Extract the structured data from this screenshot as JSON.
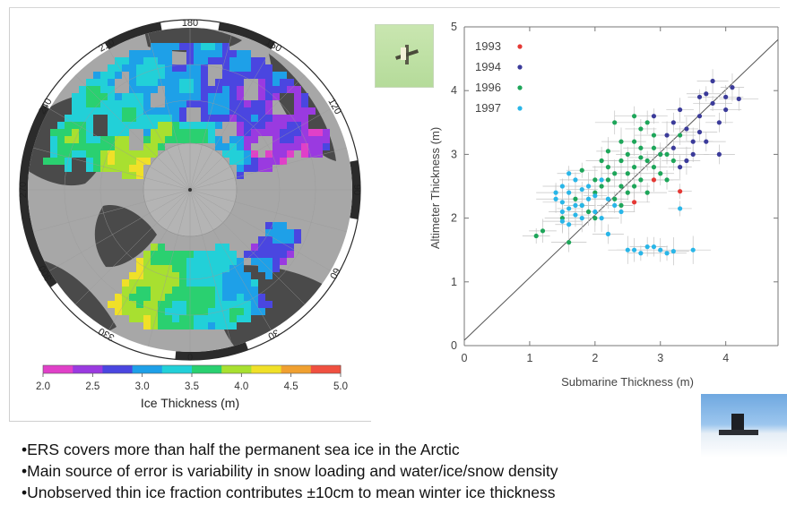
{
  "map_panel": {
    "colorbar_ticks": [
      "2.0",
      "2.5",
      "3.0",
      "3.5",
      "4.0",
      "4.5",
      "5.0"
    ],
    "colorbar_label": "Ice Thickness (m)",
    "colorbar_range": [
      2.0,
      5.0
    ],
    "colorbar_colors": [
      "#e040c8",
      "#9a3ae0",
      "#4a46e0",
      "#1ea0e8",
      "#22d0d8",
      "#2ad070",
      "#a8e030",
      "#f0e028",
      "#f0a030",
      "#f05040"
    ],
    "degree_labels": [
      "180",
      "150",
      "120",
      "90",
      "60",
      "30",
      "0",
      "330",
      "300",
      "270",
      "240",
      "210"
    ]
  },
  "chart_data": {
    "type": "scatter",
    "xlabel": "Submarine Thickness (m)",
    "ylabel": "Altimeter Thickness (m)",
    "xlim": [
      0,
      4.8
    ],
    "ylim": [
      0,
      5
    ],
    "xticks": [
      "0",
      "1",
      "2",
      "3",
      "4"
    ],
    "yticks": [
      "0",
      "1",
      "2",
      "3",
      "4",
      "5"
    ],
    "legend_position": "top-left",
    "reference_line": "y = x",
    "series": [
      {
        "name": "1993",
        "color": "#e53935",
        "x": [
          3.3,
          2.6,
          2.9
        ],
        "y": [
          2.42,
          2.25,
          2.6
        ]
      },
      {
        "name": "1994",
        "color": "#3b3b9a",
        "x": [
          3.2,
          3.4,
          3.6,
          3.8,
          3.9,
          4.0,
          4.1,
          3.5,
          3.7,
          3.3,
          3.1,
          3.6,
          3.9,
          4.2,
          3.4,
          3.0,
          3.2,
          3.8,
          3.5,
          2.9,
          3.6,
          3.3,
          4.0,
          3.7
        ],
        "y": [
          3.1,
          3.4,
          3.6,
          3.8,
          3.5,
          3.9,
          4.05,
          3.0,
          3.2,
          3.7,
          3.3,
          3.9,
          3.0,
          3.87,
          2.9,
          3.0,
          3.5,
          4.15,
          3.2,
          3.6,
          3.35,
          2.8,
          3.7,
          3.95
        ]
      },
      {
        "name": "1996",
        "color": "#1ea65a",
        "x": [
          1.2,
          1.5,
          1.8,
          2.0,
          2.2,
          2.4,
          2.6,
          2.8,
          3.0,
          2.5,
          2.3,
          2.7,
          2.1,
          1.9,
          2.9,
          3.1,
          2.4,
          2.6,
          2.2,
          2.8,
          3.0,
          2.0,
          2.5,
          2.7,
          1.7,
          2.3,
          2.9,
          3.2,
          2.6,
          2.4,
          1.1,
          1.6,
          2.8,
          2.1,
          2.5,
          3.1,
          2.7,
          2.2,
          1.8,
          2.6,
          2.9,
          2.0,
          2.4,
          3.3,
          2.3,
          2.7
        ],
        "y": [
          1.8,
          2.0,
          2.2,
          2.4,
          2.6,
          2.5,
          2.8,
          2.9,
          3.0,
          2.7,
          2.3,
          3.1,
          2.5,
          2.1,
          3.3,
          2.6,
          2.9,
          3.2,
          2.8,
          2.4,
          2.7,
          2.0,
          3.0,
          3.4,
          2.3,
          2.7,
          3.1,
          2.9,
          2.5,
          3.2,
          1.72,
          1.62,
          3.5,
          2.9,
          2.4,
          3.0,
          2.6,
          3.05,
          2.75,
          3.6,
          2.8,
          2.6,
          2.2,
          3.3,
          3.5,
          2.95
        ]
      },
      {
        "name": "1997",
        "color": "#29b6e8",
        "x": [
          1.4,
          1.5,
          1.6,
          1.7,
          1.8,
          1.5,
          1.6,
          1.9,
          2.0,
          1.7,
          1.4,
          1.8,
          2.1,
          1.6,
          2.2,
          1.5,
          1.9,
          2.3,
          2.0,
          1.7,
          2.5,
          2.7,
          2.8,
          3.0,
          3.2,
          3.1,
          2.9,
          2.6,
          1.6,
          1.8,
          2.1,
          2.4,
          3.5,
          3.3,
          2.2,
          1.5
        ],
        "y": [
          2.3,
          2.1,
          2.4,
          2.2,
          2.0,
          2.5,
          1.9,
          2.3,
          2.1,
          2.6,
          2.4,
          2.2,
          2.0,
          2.7,
          2.3,
          1.95,
          2.5,
          2.2,
          2.35,
          2.05,
          1.5,
          1.45,
          1.55,
          1.5,
          1.48,
          1.45,
          1.55,
          1.5,
          2.15,
          2.45,
          2.6,
          2.1,
          1.5,
          2.15,
          1.75,
          2.25
        ]
      }
    ]
  },
  "bullets": [
    "•ERS covers more than half the permanent sea  ice in the Arctic",
    "•Main source of error is variability in snow loading and water/ice/snow density",
    "•Unobserved thin ice fraction contributes ±10cm to mean winter ice thickness"
  ]
}
